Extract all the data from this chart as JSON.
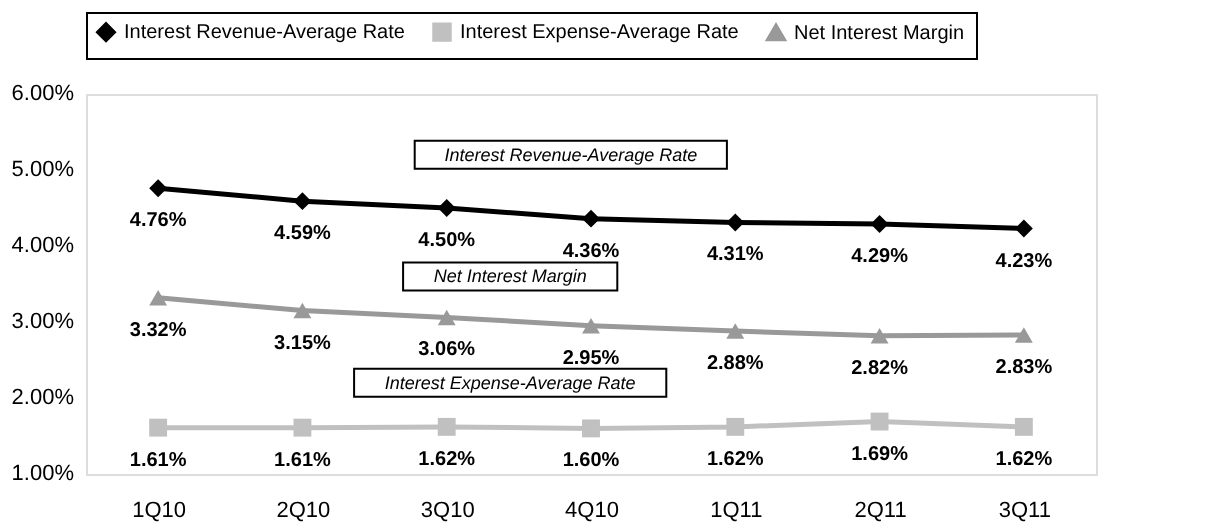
{
  "chart_data": {
    "type": "line",
    "categories": [
      "1Q10",
      "2Q10",
      "3Q10",
      "4Q10",
      "1Q11",
      "2Q11",
      "3Q11"
    ],
    "series": [
      {
        "name": "Interest Revenue-Average Rate",
        "color": "#000000",
        "marker": "diamond",
        "values": [
          4.76,
          4.59,
          4.5,
          4.36,
          4.31,
          4.29,
          4.23
        ],
        "value_labels": [
          "4.76%",
          "4.59%",
          "4.50%",
          "4.36%",
          "4.31%",
          "4.29%",
          "4.23%"
        ]
      },
      {
        "name": "Interest Expense-Average Rate",
        "color": "#c0c0c0",
        "marker": "square",
        "values": [
          1.61,
          1.61,
          1.62,
          1.6,
          1.62,
          1.69,
          1.62
        ],
        "value_labels": [
          "1.61%",
          "1.61%",
          "1.62%",
          "1.60%",
          "1.62%",
          "1.69%",
          "1.62%"
        ]
      },
      {
        "name": "Net Interest Margin",
        "color": "#999999",
        "marker": "triangle",
        "values": [
          3.32,
          3.15,
          3.06,
          2.95,
          2.88,
          2.82,
          2.83
        ],
        "value_labels": [
          "3.32%",
          "3.15%",
          "3.06%",
          "2.95%",
          "2.88%",
          "2.82%",
          "2.83%"
        ]
      }
    ],
    "ylim": [
      1,
      6
    ],
    "yticks": [
      {
        "value": 1,
        "label": "1.00%"
      },
      {
        "value": 2,
        "label": "2.00%"
      },
      {
        "value": 3,
        "label": "3.00%"
      },
      {
        "value": 4,
        "label": "4.00%"
      },
      {
        "value": 5,
        "label": "5.00%"
      },
      {
        "value": 6,
        "label": "6.00%"
      }
    ],
    "annotations": [
      "Interest Revenue-Average Rate",
      "Net Interest Margin",
      "Interest Expense-Average Rate"
    ],
    "legend": "top",
    "grid": false
  }
}
